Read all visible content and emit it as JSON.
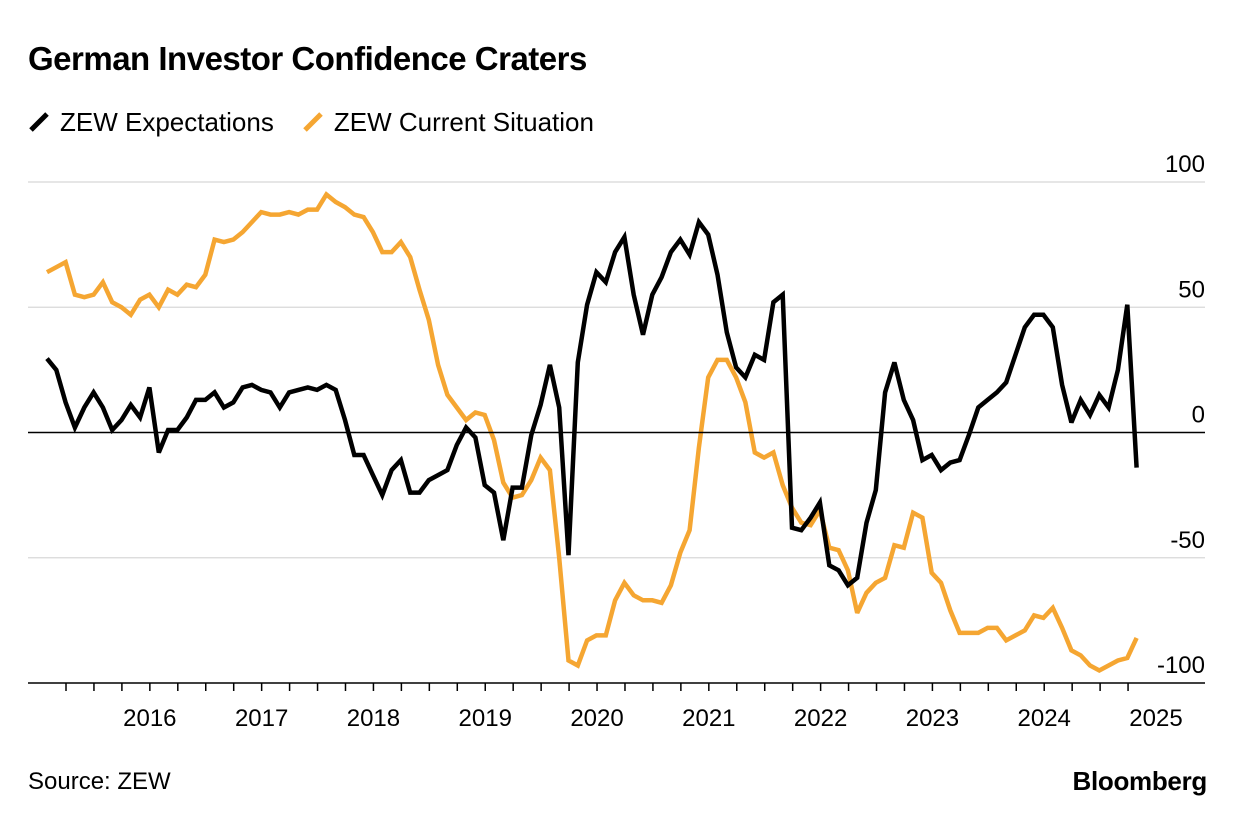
{
  "chart_data": {
    "type": "line",
    "title": "German Investor Confidence Craters",
    "xlabel": "",
    "ylabel": "",
    "xlim": [
      2015.58,
      2025.33
    ],
    "ylim": [
      -100,
      100
    ],
    "y_ticks": [
      100,
      50,
      0,
      -50,
      -100
    ],
    "x_ticks": [
      2016,
      2017,
      2018,
      2019,
      2020,
      2021,
      2022,
      2023,
      2024,
      2025
    ],
    "x_tick_labels": [
      "2016",
      "2017",
      "2018",
      "2019",
      "2020",
      "2021",
      "2022",
      "2023",
      "2024",
      "2025"
    ],
    "grid": true,
    "legend_position": "top-left",
    "series": [
      {
        "name": "ZEW Expectations",
        "color": "#000000",
        "start": 2015.58,
        "step": 0.0833,
        "values": [
          29.5,
          25,
          12,
          2,
          10,
          16,
          10,
          1,
          5,
          11,
          6,
          18,
          -8,
          1,
          1,
          6,
          13,
          13,
          16,
          10,
          12,
          18,
          19,
          17,
          16,
          10,
          16,
          17,
          18,
          17,
          19,
          17,
          5,
          -9,
          -9,
          -17,
          -25,
          -15,
          -11,
          -24,
          -24,
          -19,
          -17,
          -15,
          -5,
          2,
          -2,
          -21,
          -24,
          -43,
          -22,
          -22,
          -1,
          11,
          27,
          10,
          -49,
          28,
          51,
          64,
          60,
          72,
          78,
          55,
          39,
          55,
          62,
          72,
          77,
          71,
          84,
          79,
          63,
          40,
          26,
          22,
          31,
          29,
          52,
          55,
          -38,
          -39,
          -34,
          -28,
          -53,
          -55,
          -61,
          -58,
          -36,
          -23,
          16,
          28,
          13,
          5,
          -11,
          -9,
          -15,
          -12,
          -11,
          -1,
          10,
          13,
          16,
          20,
          31,
          42,
          47,
          47,
          42,
          19,
          4,
          13,
          7,
          15,
          10,
          25,
          51,
          -14
        ]
      },
      {
        "name": "ZEW Current Situation",
        "color": "#f5a632",
        "start": 2015.58,
        "step": 0.0833,
        "values": [
          64,
          66,
          68,
          55,
          54,
          55,
          60,
          52,
          50,
          47,
          53,
          55,
          50,
          57,
          55,
          59,
          58,
          63,
          77,
          76,
          77,
          80,
          84,
          88,
          87,
          87,
          88,
          87,
          89,
          89,
          95,
          92,
          90,
          87,
          86,
          80,
          72,
          72,
          76,
          70,
          57,
          45,
          27,
          15,
          10,
          5,
          8,
          7,
          -3,
          -20,
          -26,
          -25,
          -19,
          -10,
          -15,
          -50,
          -91,
          -93,
          -83,
          -81,
          -81,
          -67,
          -60,
          -65,
          -67,
          -67,
          -68,
          -61,
          -48,
          -39,
          -6,
          22,
          29,
          29,
          22,
          12,
          -8,
          -10,
          -8,
          -21,
          -30,
          -36,
          -37,
          -31,
          -46,
          -47,
          -55,
          -72,
          -64,
          -60,
          -58,
          -45,
          -46,
          -32,
          -34,
          -56,
          -60,
          -71,
          -80,
          -80,
          -80,
          -78,
          -78,
          -83,
          -81,
          -79,
          -73,
          -74,
          -70,
          -78,
          -87,
          -89,
          -93,
          -95,
          -93,
          -91,
          -90,
          -82
        ]
      }
    ]
  },
  "source": "Source: ZEW",
  "brand": "Bloomberg",
  "colors": {
    "axis": "#000000",
    "grid": "#d8d8d8"
  }
}
